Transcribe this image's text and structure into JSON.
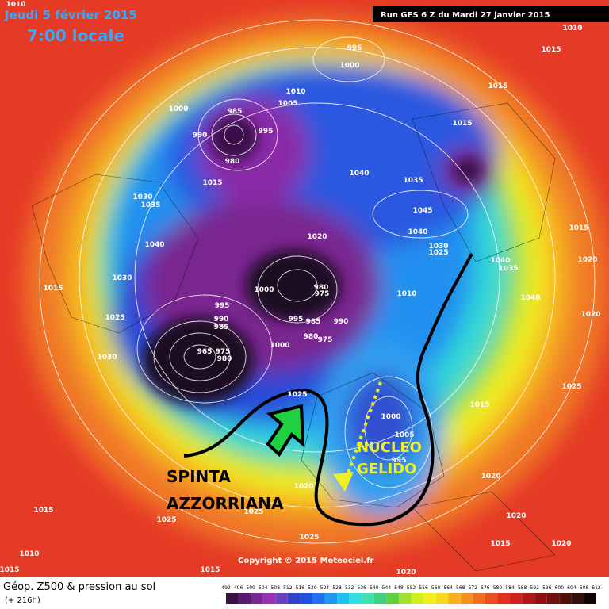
{
  "header": {
    "date": "Jeudi 5 février 2015",
    "time": "7:00 locale",
    "run": "Run GFS 6 Z du Mardi 27 janvier 2015"
  },
  "annotations": {
    "push_1": "SPINTA",
    "push_2": "AZZORRIANA",
    "core_1": "NUCLEO",
    "core_2": "GELIDO"
  },
  "copyright": "Copyright © 2015 Meteociel.fr",
  "isobars": [
    1010,
    1010,
    995,
    1000,
    1015,
    1015,
    1000,
    985,
    1005,
    1010,
    995,
    990,
    980,
    1015,
    1015,
    1040,
    1035,
    1030,
    1035,
    1045,
    1040,
    1020,
    1040,
    1030,
    1025,
    1040,
    1035,
    1015,
    1020,
    1015,
    1030,
    1000,
    980,
    975,
    1010,
    1040,
    995,
    1025,
    990,
    985,
    995,
    985,
    990,
    1020,
    980,
    975,
    1000,
    965,
    975,
    980,
    1030,
    1025,
    1025,
    1015,
    1000,
    1005,
    995,
    1020,
    1020,
    1025,
    1025,
    1015,
    1020,
    1025,
    1015,
    1020,
    1015,
    1020,
    1015,
    1010
  ],
  "legend": {
    "title": "Géop. Z500 & pression au sol",
    "lead": "(+ 216h)",
    "scale": [
      492,
      496,
      500,
      504,
      508,
      512,
      516,
      520,
      524,
      528,
      532,
      536,
      540,
      544,
      548,
      552,
      556,
      560,
      564,
      568,
      572,
      576,
      580,
      584,
      588,
      592,
      596,
      600,
      604,
      608,
      612
    ],
    "colors": [
      "#3a1048",
      "#5a1a70",
      "#7a2890",
      "#9a30b0",
      "#6a40c0",
      "#3040c8",
      "#2050e0",
      "#2070f0",
      "#2098f0",
      "#20c0f0",
      "#30e0e0",
      "#40e0b0",
      "#40d080",
      "#60d040",
      "#a0e030",
      "#d0f020",
      "#f0f020",
      "#f8d820",
      "#f8b020",
      "#f89020",
      "#f07020",
      "#e85020",
      "#e03020",
      "#d02020",
      "#b01818",
      "#901010",
      "#701010",
      "#501008",
      "#301008",
      "#100404"
    ]
  }
}
